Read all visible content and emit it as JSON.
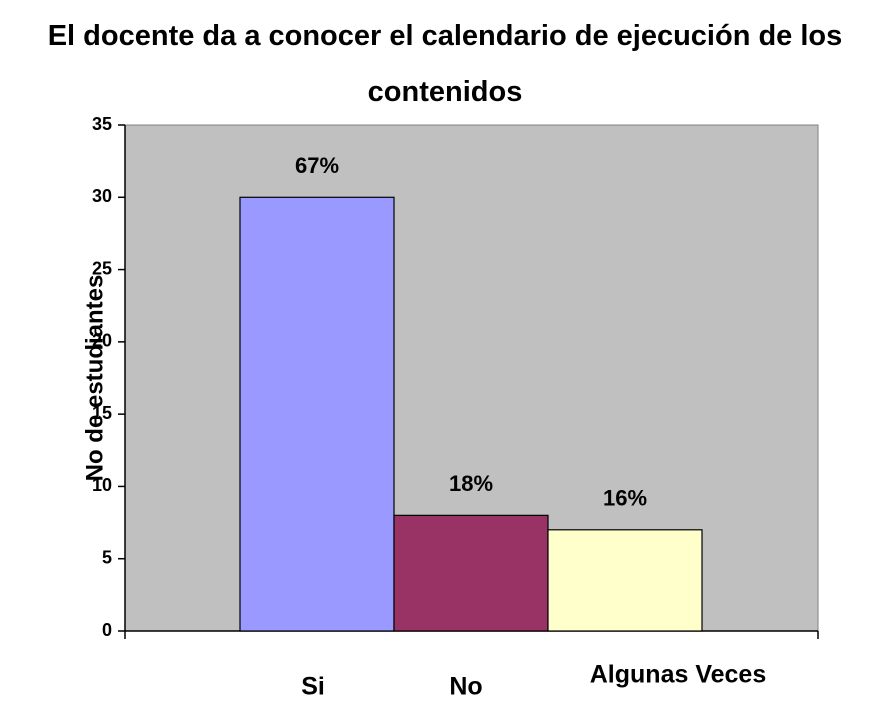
{
  "chart_data": {
    "type": "bar",
    "title": "El docente da a conocer el calendario de ejecución de los contenidos",
    "ylabel": "No de estudiantes",
    "categories": [
      "Si",
      "No",
      "Algunas Veces"
    ],
    "values": [
      30,
      8,
      7
    ],
    "annotations": [
      "67%",
      "18%",
      "16%"
    ],
    "colors": [
      "#9999ff",
      "#993366",
      "#ffffcc"
    ],
    "ylim": [
      0,
      35
    ],
    "yticks": [
      0,
      5,
      10,
      15,
      20,
      25,
      30,
      35
    ],
    "grid": false
  }
}
